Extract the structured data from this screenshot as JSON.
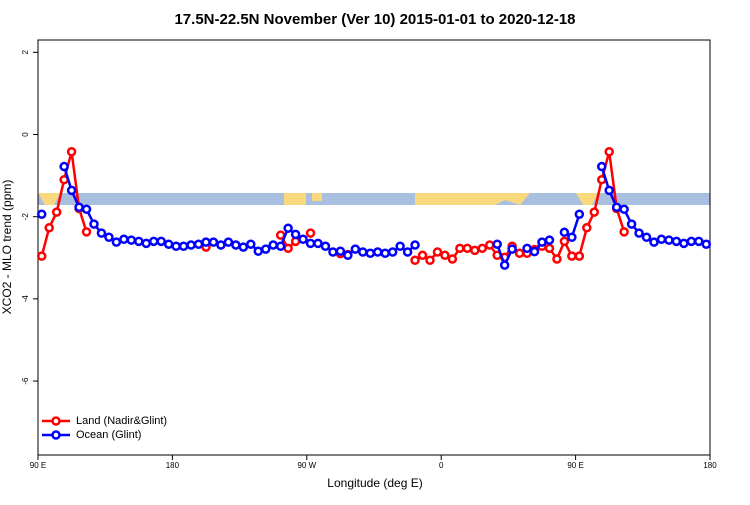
{
  "chart_data": {
    "type": "line",
    "title": "17.5N-22.5N November (Ver 10)   2015-01-01 to 2020-12-18",
    "x_label": "Longitude (deg E)",
    "y_label": "XCO2 - MLO trend (ppm)",
    "xlim": [
      90,
      540
    ],
    "ylim": [
      -7.8,
      2.3
    ],
    "xticks": [
      {
        "value": 90,
        "label": "90 E"
      },
      {
        "value": 180,
        "label": "180"
      },
      {
        "value": 270,
        "label": "90 W"
      },
      {
        "value": 360,
        "label": "0"
      },
      {
        "value": 450,
        "label": "90 E"
      },
      {
        "value": 540,
        "label": "180"
      }
    ],
    "yticks": [
      -6,
      -4,
      -2,
      0,
      2
    ],
    "legend": "bottomleft",
    "x": [
      92.5,
      97.5,
      102.5,
      107.5,
      112.5,
      117.5,
      122.5,
      127.5,
      132.5,
      137.5,
      142.5,
      147.5,
      152.5,
      157.5,
      162.5,
      167.5,
      172.5,
      177.5,
      182.5,
      187.5,
      192.5,
      197.5,
      202.5,
      207.5,
      212.5,
      217.5,
      222.5,
      227.5,
      232.5,
      237.5,
      242.5,
      247.5,
      252.5,
      257.5,
      262.5,
      267.5,
      272.5,
      277.5,
      282.5,
      287.5,
      292.5,
      297.5,
      302.5,
      307.5,
      312.5,
      317.5,
      322.5,
      327.5,
      332.5,
      337.5,
      342.5,
      347.5,
      352.5,
      357.5,
      362.5,
      367.5,
      372.5,
      377.5,
      382.5,
      387.5,
      392.5,
      397.5,
      402.5,
      407.5,
      412.5,
      417.5,
      422.5,
      427.5,
      432.5,
      437.5,
      442.5,
      447.5,
      452.5,
      457.5,
      462.5,
      467.5,
      472.5,
      477.5,
      482.5,
      487.5,
      492.5,
      497.5,
      502.5,
      507.5,
      512.5,
      517.5,
      522.5,
      527.5,
      532.5,
      537.5
    ],
    "series": [
      {
        "name": "Land (Nadir&Glint)",
        "color": "#ff0000",
        "values": [
          -2.96,
          -2.27,
          -1.89,
          -1.1,
          -0.42,
          -1.8,
          -2.37,
          null,
          null,
          null,
          null,
          null,
          null,
          null,
          null,
          null,
          null,
          null,
          null,
          null,
          null,
          null,
          -2.74,
          null,
          null,
          null,
          null,
          null,
          null,
          null,
          null,
          null,
          -2.45,
          -2.77,
          -2.6,
          null,
          -2.4,
          null,
          null,
          null,
          -2.9,
          -2.92,
          null,
          null,
          null,
          null,
          null,
          null,
          null,
          null,
          -3.06,
          -2.94,
          -3.06,
          -2.86,
          -2.94,
          -3.03,
          -2.77,
          -2.77,
          -2.82,
          -2.77,
          -2.69,
          -2.94,
          -2.99,
          -2.72,
          -2.89,
          -2.89,
          -2.8,
          -2.72,
          -2.77,
          -3.03,
          -2.6,
          -2.96,
          -2.96,
          -2.27,
          -1.89,
          -1.1,
          -0.42,
          -1.8,
          -2.37,
          null,
          null,
          null,
          null,
          null,
          null,
          null,
          null,
          null,
          null,
          null
        ]
      },
      {
        "name": "Ocean (Glint)",
        "color": "#0000ff",
        "values": [
          -1.94,
          null,
          null,
          -0.78,
          -1.36,
          -1.77,
          -1.82,
          -2.18,
          -2.4,
          -2.5,
          -2.62,
          -2.55,
          -2.57,
          -2.6,
          -2.65,
          -2.6,
          -2.6,
          -2.67,
          -2.72,
          -2.72,
          -2.69,
          -2.67,
          -2.62,
          -2.62,
          -2.69,
          -2.62,
          -2.69,
          -2.74,
          -2.67,
          -2.84,
          -2.79,
          -2.69,
          -2.72,
          -2.28,
          -2.43,
          -2.55,
          -2.65,
          -2.65,
          -2.72,
          -2.86,
          -2.84,
          -2.94,
          -2.79,
          -2.86,
          -2.89,
          -2.86,
          -2.89,
          -2.86,
          -2.72,
          -2.86,
          -2.69,
          null,
          null,
          null,
          null,
          null,
          null,
          null,
          null,
          null,
          null,
          -2.67,
          -3.18,
          -2.79,
          null,
          -2.77,
          -2.85,
          -2.62,
          -2.57,
          null,
          -2.38,
          -2.5,
          -1.94,
          null,
          null,
          -0.78,
          -1.36,
          -1.77,
          -1.82,
          -2.18,
          -2.4,
          -2.5,
          -2.62,
          -2.55,
          -2.57,
          -2.6,
          -2.65,
          -2.6,
          -2.6,
          -2.67
        ]
      }
    ]
  }
}
